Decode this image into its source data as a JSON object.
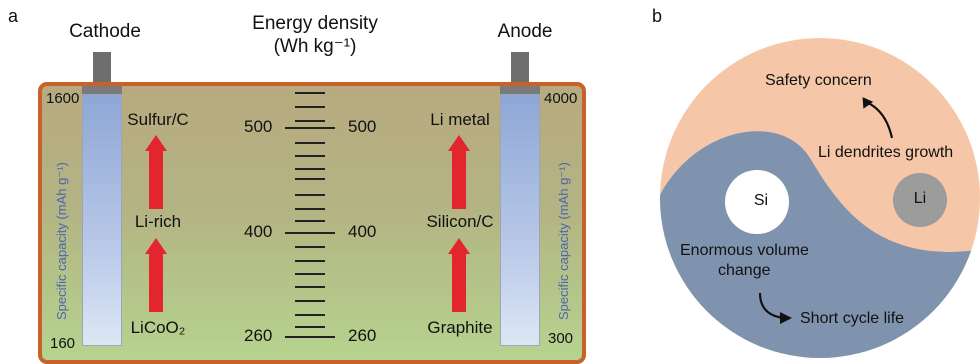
{
  "panel_a": {
    "letter": "a",
    "cathode_label": "Cathode",
    "anode_label": "Anode",
    "energy_title_line1": "Energy density",
    "energy_title_line2": "(Wh kg⁻¹)",
    "left_axis_label": "Specific capacity (mAh g⁻¹)",
    "right_axis_label": "Specific capacity (mAh g⁻¹)",
    "left_axis_top": "1600",
    "left_axis_bottom": "160",
    "right_axis_top": "4000",
    "right_axis_bottom": "300",
    "cathode_materials": [
      "Sulfur/C",
      "Li-rich",
      "LiCoO₂"
    ],
    "anode_materials": [
      "Li metal",
      "Silicon/C",
      "Graphite"
    ],
    "energy_ticks": [
      "500",
      "400",
      "260"
    ],
    "colors": {
      "battery_border": "#c9622a",
      "arrow": "#e3252e",
      "tube": "#8ea7d6"
    }
  },
  "panel_b": {
    "letter": "b",
    "safety_concern": "Safety concern",
    "dendrites": "Li dendrites growth",
    "si_label": "Si",
    "li_label": "Li",
    "volume_change_line1": "Enormous volume",
    "volume_change_line2": "change",
    "short_cycle": "Short cycle life",
    "colors": {
      "peach": "#f5c7a8",
      "blue": "#7f93ae",
      "li_circle": "#9b9b9b"
    }
  }
}
